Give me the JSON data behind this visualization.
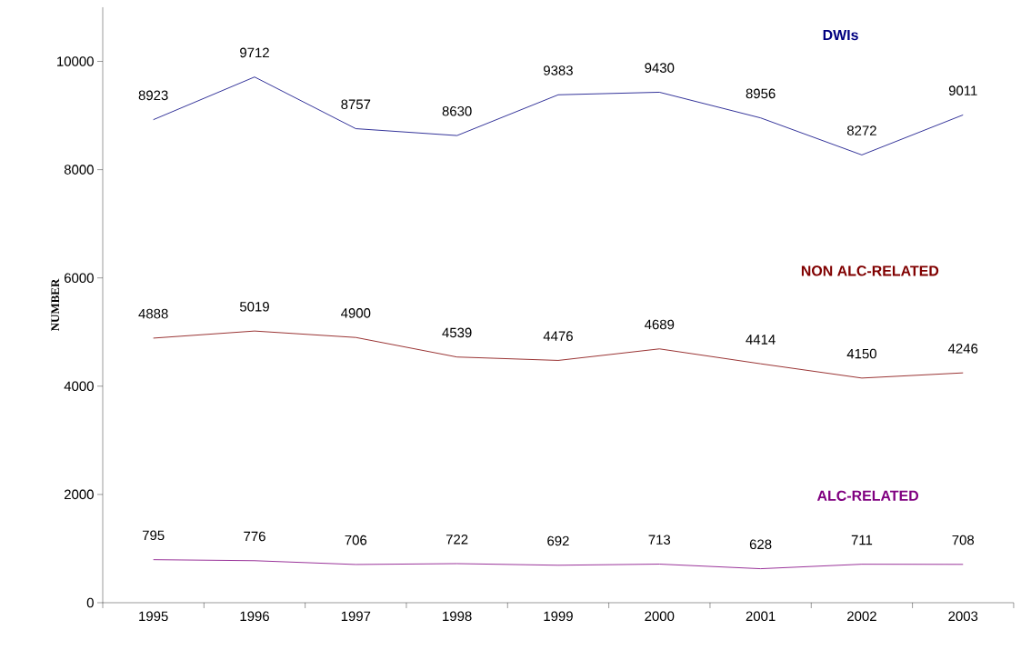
{
  "chart_data": {
    "type": "line",
    "ylabel": "NUMBER",
    "categories": [
      "1995",
      "1996",
      "1997",
      "1998",
      "1999",
      "2000",
      "2001",
      "2002",
      "2003"
    ],
    "series": [
      {
        "name": "DWIs",
        "color": "#000080",
        "values": [
          8923,
          9712,
          8757,
          8630,
          9383,
          9430,
          8956,
          8272,
          9011
        ]
      },
      {
        "name": "NON ALC-RELATED",
        "color": "#800000",
        "values": [
          4888,
          5019,
          4900,
          4539,
          4476,
          4689,
          4414,
          4150,
          4246
        ]
      },
      {
        "name": "ALC-RELATED",
        "color": "#800080",
        "values": [
          795,
          776,
          706,
          722,
          692,
          713,
          628,
          711,
          708
        ]
      }
    ],
    "ylim": [
      0,
      11000
    ],
    "yticks": [
      0,
      2000,
      4000,
      6000,
      8000,
      10000
    ],
    "grid": false,
    "marker": "none",
    "line_style": "solid",
    "data_labels": true
  }
}
